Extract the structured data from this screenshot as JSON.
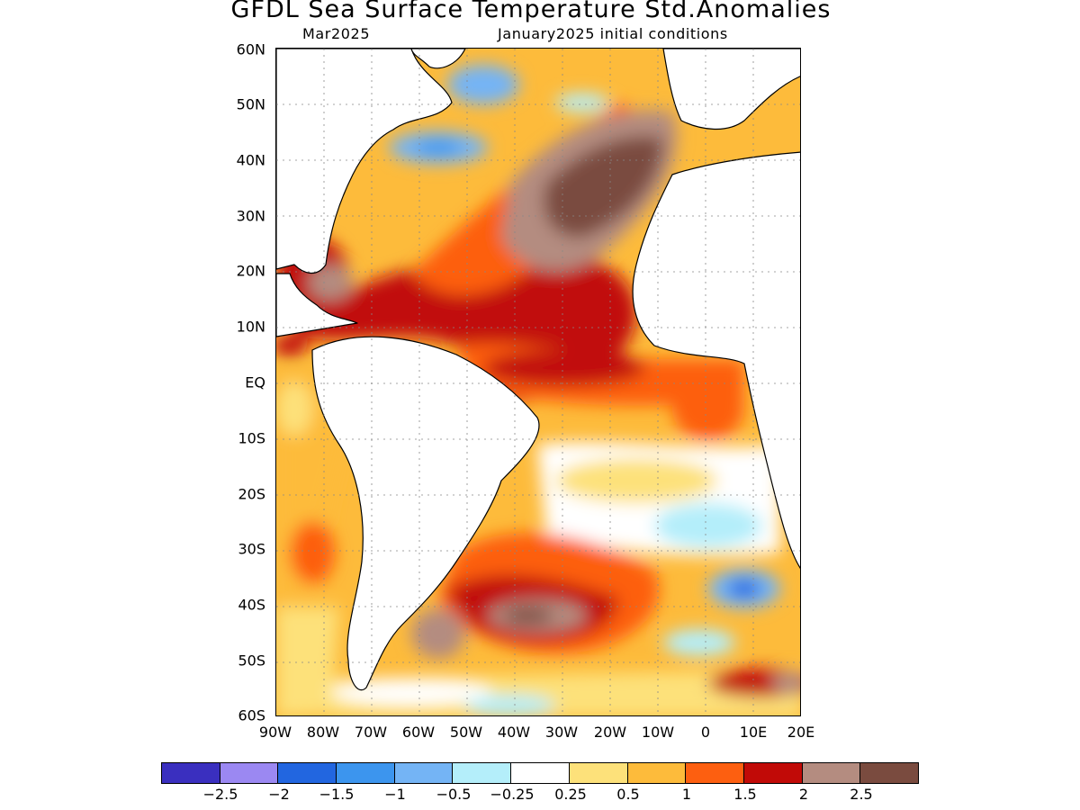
{
  "title": "GFDL Sea Surface Temperature Std.Anomalies",
  "subtitle_left": "Mar2025",
  "subtitle_right": "January2025 initial conditions",
  "axes": {
    "lat_labels": [
      "60N",
      "50N",
      "40N",
      "30N",
      "20N",
      "10N",
      "EQ",
      "10S",
      "20S",
      "30S",
      "40S",
      "50S",
      "60S"
    ],
    "lon_labels": [
      "90W",
      "80W",
      "70W",
      "60W",
      "50W",
      "40W",
      "30W",
      "20W",
      "10W",
      "0",
      "10E",
      "20E"
    ]
  },
  "colorbar": {
    "colors": [
      "#3a2fbf",
      "#9b88f2",
      "#2266e0",
      "#3c95ee",
      "#74b4f5",
      "#b4eefa",
      "#ffffff",
      "#fde17a",
      "#fdbb3b",
      "#fd5f10",
      "#c10a07",
      "#b48c80",
      "#7a4b3f"
    ],
    "labels": [
      "−2.5",
      "−2",
      "−1.5",
      "−1",
      "−0.5",
      "−0.25",
      "0.25",
      "0.5",
      "1",
      "1.5",
      "2",
      "2.5"
    ]
  },
  "style": {
    "land_color": "#ffffff",
    "coast_color": "#000000",
    "grid": "dotted"
  }
}
